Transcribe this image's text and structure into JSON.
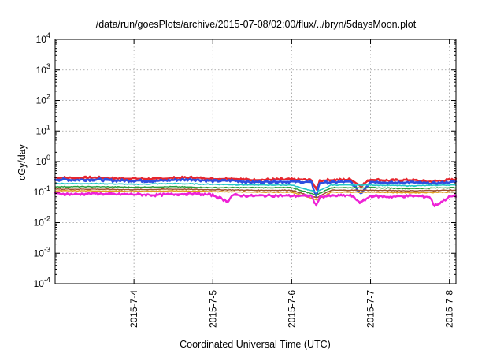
{
  "chart_data": {
    "type": "line",
    "title": "/data/run/goesPlots/archive/2015-07-08/02:00/flux/../bryn/5daysMoon.plot",
    "xlabel": "Coordinated Universal Time (UTC)",
    "ylabel": "cGy/day",
    "y_scale": "log",
    "ylim": [
      0.0001,
      10000
    ],
    "xlim": [
      "2015-07-03 00:00",
      "2015-07-08 02:00"
    ],
    "y_ticks": [
      {
        "base": "10",
        "exp": "4"
      },
      {
        "base": "10",
        "exp": "3"
      },
      {
        "base": "10",
        "exp": "2"
      },
      {
        "base": "10",
        "exp": "1"
      },
      {
        "base": "10",
        "exp": "0"
      },
      {
        "base": "10",
        "exp": "-1"
      },
      {
        "base": "10",
        "exp": "-2"
      },
      {
        "base": "10",
        "exp": "-3"
      },
      {
        "base": "10",
        "exp": "-4"
      }
    ],
    "x_ticks": [
      "2015-7-4",
      "2015-7-5",
      "2015-7-6",
      "2015-7-7",
      "2015-7-8"
    ],
    "grid": true,
    "series": [
      {
        "color": "#e6262e",
        "width": 2.2,
        "x": [
          "2015-07-03 00:00",
          "2015-07-03 06:00",
          "2015-07-03 12:00",
          "2015-07-03 18:00",
          "2015-07-04 00:00",
          "2015-07-04 06:00",
          "2015-07-04 12:00",
          "2015-07-04 18:00",
          "2015-07-05 00:00",
          "2015-07-05 06:00",
          "2015-07-05 12:00",
          "2015-07-05 18:00",
          "2015-07-06 00:00",
          "2015-07-06 06:00",
          "2015-07-06 07:30",
          "2015-07-06 08:30",
          "2015-07-06 12:00",
          "2015-07-06 18:00",
          "2015-07-06 21:00",
          "2015-07-07 00:00",
          "2015-07-07 06:00",
          "2015-07-07 12:00",
          "2015-07-07 18:00",
          "2015-07-08 00:00",
          "2015-07-08 02:00"
        ],
        "y": [
          0.3,
          0.29,
          0.3,
          0.28,
          0.28,
          0.27,
          0.29,
          0.3,
          0.27,
          0.28,
          0.25,
          0.26,
          0.26,
          0.25,
          0.12,
          0.24,
          0.25,
          0.26,
          0.16,
          0.26,
          0.24,
          0.25,
          0.22,
          0.25,
          0.26
        ]
      },
      {
        "color": "#2f4fe0",
        "width": 2.4,
        "x": [
          "2015-07-03 00:00",
          "2015-07-03 06:00",
          "2015-07-03 12:00",
          "2015-07-03 18:00",
          "2015-07-04 00:00",
          "2015-07-04 06:00",
          "2015-07-04 12:00",
          "2015-07-04 18:00",
          "2015-07-05 00:00",
          "2015-07-05 06:00",
          "2015-07-05 12:00",
          "2015-07-05 18:00",
          "2015-07-06 00:00",
          "2015-07-06 06:00",
          "2015-07-06 07:30",
          "2015-07-06 08:30",
          "2015-07-06 12:00",
          "2015-07-06 18:00",
          "2015-07-06 21:00",
          "2015-07-07 00:00",
          "2015-07-07 06:00",
          "2015-07-07 12:00",
          "2015-07-07 18:00",
          "2015-07-08 00:00",
          "2015-07-08 02:00"
        ],
        "y": [
          0.26,
          0.25,
          0.26,
          0.24,
          0.24,
          0.23,
          0.25,
          0.26,
          0.23,
          0.24,
          0.21,
          0.22,
          0.22,
          0.21,
          0.07,
          0.2,
          0.21,
          0.22,
          0.09,
          0.22,
          0.2,
          0.21,
          0.19,
          0.21,
          0.22
        ]
      },
      {
        "color": "#22c7c7",
        "width": 1.4,
        "x": [
          "2015-07-03 00:00",
          "2015-07-03 12:00",
          "2015-07-04 00:00",
          "2015-07-04 12:00",
          "2015-07-05 00:00",
          "2015-07-05 12:00",
          "2015-07-06 00:00",
          "2015-07-06 07:30",
          "2015-07-06 12:00",
          "2015-07-07 00:00",
          "2015-07-07 12:00",
          "2015-07-08 00:00",
          "2015-07-08 02:00"
        ],
        "y": [
          0.19,
          0.19,
          0.18,
          0.19,
          0.18,
          0.17,
          0.17,
          0.1,
          0.17,
          0.17,
          0.16,
          0.17,
          0.17
        ]
      },
      {
        "color": "#2a9d3a",
        "width": 1.3,
        "x": [
          "2015-07-03 00:00",
          "2015-07-03 12:00",
          "2015-07-04 00:00",
          "2015-07-04 12:00",
          "2015-07-05 00:00",
          "2015-07-05 12:00",
          "2015-07-06 00:00",
          "2015-07-06 07:30",
          "2015-07-06 12:00",
          "2015-07-07 00:00",
          "2015-07-07 12:00",
          "2015-07-08 00:00",
          "2015-07-08 02:00"
        ],
        "y": [
          0.15,
          0.15,
          0.145,
          0.15,
          0.14,
          0.14,
          0.14,
          0.08,
          0.14,
          0.14,
          0.13,
          0.14,
          0.14
        ]
      },
      {
        "color": "#a0522d",
        "width": 1.3,
        "x": [
          "2015-07-03 00:00",
          "2015-07-03 12:00",
          "2015-07-04 00:00",
          "2015-07-04 12:00",
          "2015-07-05 00:00",
          "2015-07-05 12:00",
          "2015-07-06 00:00",
          "2015-07-06 07:30",
          "2015-07-06 12:00",
          "2015-07-07 00:00",
          "2015-07-07 12:00",
          "2015-07-08 00:00",
          "2015-07-08 02:00"
        ],
        "y": [
          0.125,
          0.125,
          0.12,
          0.125,
          0.12,
          0.115,
          0.115,
          0.065,
          0.115,
          0.115,
          0.11,
          0.115,
          0.115
        ]
      },
      {
        "color": "#e0a020",
        "width": 1.3,
        "x": [
          "2015-07-03 00:00",
          "2015-07-03 12:00",
          "2015-07-04 00:00",
          "2015-07-04 12:00",
          "2015-07-05 00:00",
          "2015-07-05 12:00",
          "2015-07-06 00:00",
          "2015-07-06 07:30",
          "2015-07-06 12:00",
          "2015-07-07 00:00",
          "2015-07-07 12:00",
          "2015-07-08 00:00",
          "2015-07-08 02:00"
        ],
        "y": [
          0.11,
          0.11,
          0.105,
          0.11,
          0.105,
          0.1,
          0.1,
          0.055,
          0.1,
          0.1,
          0.095,
          0.1,
          0.1
        ]
      },
      {
        "color": "#ee22d6",
        "width": 2.2,
        "x": [
          "2015-07-03 00:00",
          "2015-07-03 06:00",
          "2015-07-03 12:00",
          "2015-07-03 18:00",
          "2015-07-04 00:00",
          "2015-07-04 06:00",
          "2015-07-04 12:00",
          "2015-07-04 18:00",
          "2015-07-05 00:00",
          "2015-07-05 04:30",
          "2015-07-05 06:00",
          "2015-07-05 12:00",
          "2015-07-05 18:00",
          "2015-07-06 00:00",
          "2015-07-06 06:00",
          "2015-07-06 07:30",
          "2015-07-06 08:30",
          "2015-07-06 12:00",
          "2015-07-06 18:00",
          "2015-07-06 21:00",
          "2015-07-07 00:00",
          "2015-07-07 06:00",
          "2015-07-07 12:00",
          "2015-07-07 18:00",
          "2015-07-07 19:30",
          "2015-07-08 00:00",
          "2015-07-08 02:00"
        ],
        "y": [
          0.09,
          0.085,
          0.09,
          0.085,
          0.085,
          0.08,
          0.085,
          0.09,
          0.08,
          0.05,
          0.08,
          0.075,
          0.078,
          0.075,
          0.075,
          0.035,
          0.07,
          0.075,
          0.078,
          0.045,
          0.075,
          0.07,
          0.075,
          0.07,
          0.035,
          0.07,
          0.075
        ]
      }
    ]
  }
}
